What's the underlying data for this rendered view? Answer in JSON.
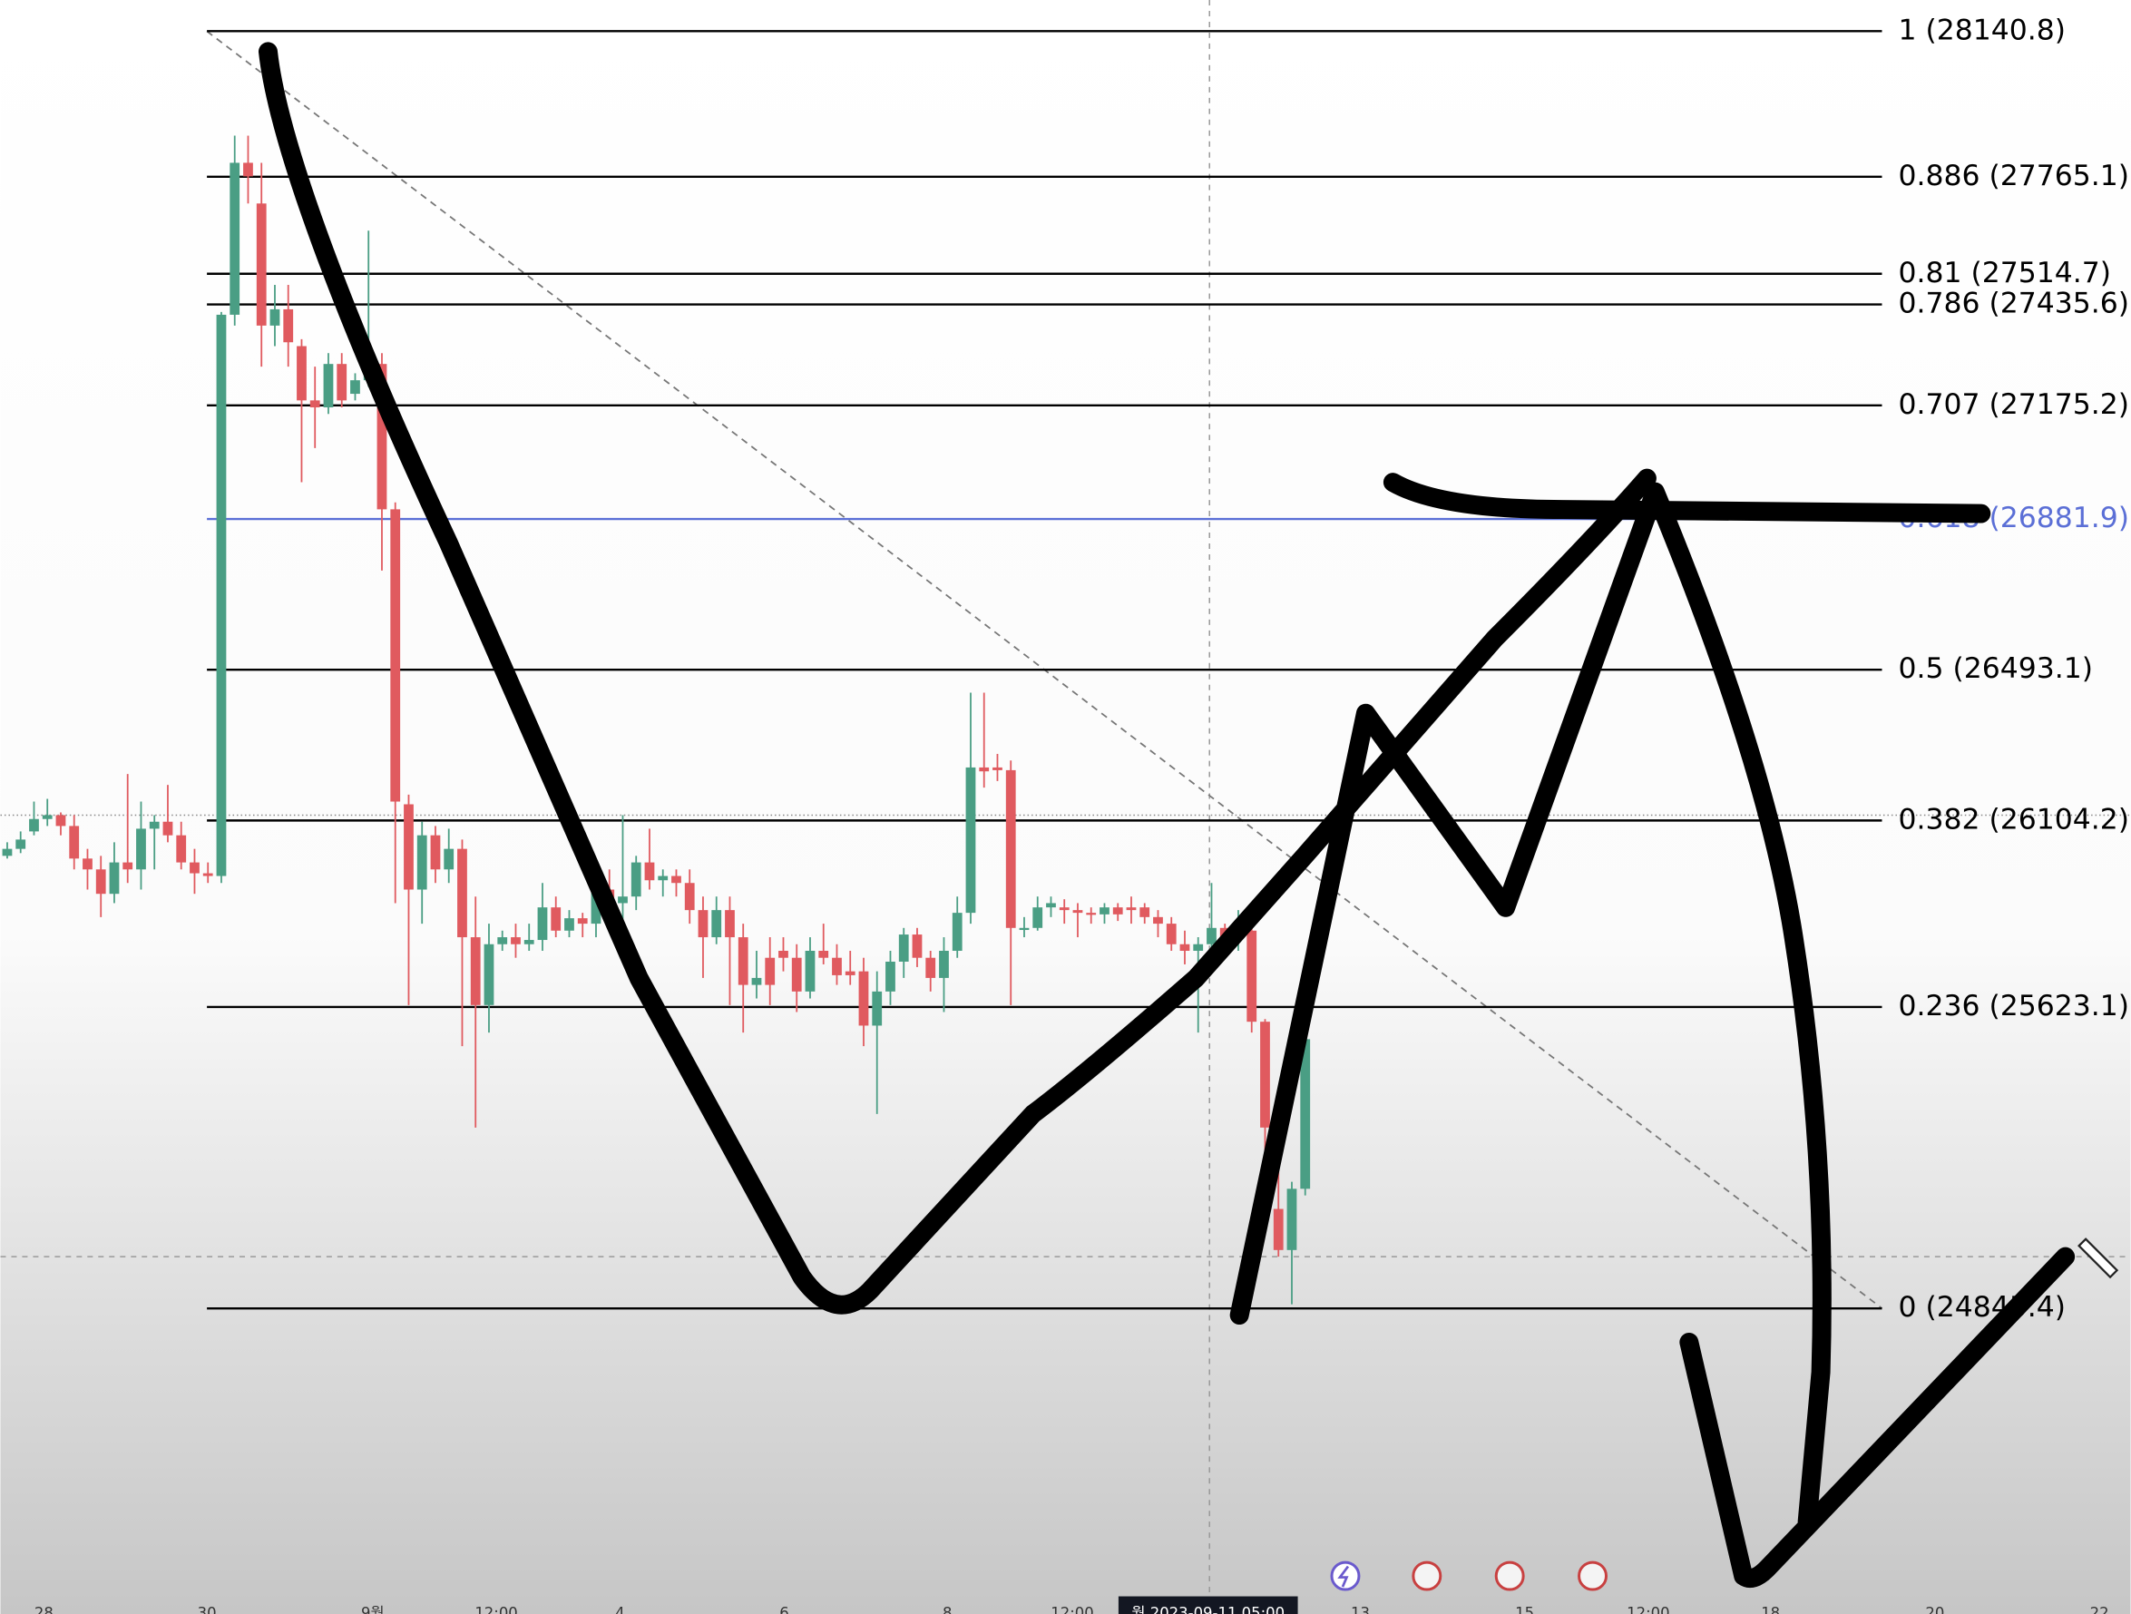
{
  "chart_data": {
    "type": "candlestick",
    "ylim": [
      24057,
      28221
    ],
    "up_color": "#4a9e84",
    "down_color": "#e05a5f",
    "levels": [
      {
        "label": "1 (28140.8)",
        "value": 28140.8,
        "color": "#000000"
      },
      {
        "label": "0.886 (27765.1)",
        "value": 27765.1,
        "color": "#000000"
      },
      {
        "label": "0.81 (27514.7)",
        "value": 27514.7,
        "color": "#000000"
      },
      {
        "label": "0.786 (27435.6)",
        "value": 27435.6,
        "color": "#000000"
      },
      {
        "label": "0.707 (27175.2)",
        "value": 27175.2,
        "color": "#000000"
      },
      {
        "label": "0.618 (26881.9)",
        "value": 26881.9,
        "color": "#5b6fd6"
      },
      {
        "label": "0.5 (26493.1)",
        "value": 26493.1,
        "color": "#000000"
      },
      {
        "label": "0.382 (26104.2)",
        "value": 26104.2,
        "color": "#000000"
      },
      {
        "label": "0.236 (25623.1)",
        "value": 25623.1,
        "color": "#000000"
      },
      {
        "label": "0 (24845.4)",
        "value": 24845.4,
        "color": "#000000"
      }
    ],
    "x_labels": [
      "28",
      "30",
      "9월",
      "12:00",
      "4",
      "6",
      "8",
      "12:00",
      "13",
      "15",
      "12:00",
      "18",
      "20",
      "22"
    ],
    "cursor_time": "월 2023-09-11 05:00",
    "candles": [
      [
        26013,
        26048,
        26006,
        26031
      ],
      [
        26031,
        26076,
        26020,
        26055
      ],
      [
        26076,
        26153,
        26066,
        26108
      ],
      [
        26108,
        26160,
        26090,
        26118
      ],
      [
        26118,
        26125,
        26066,
        26090
      ],
      [
        26090,
        26118,
        25978,
        26006
      ],
      [
        26006,
        26031,
        25926,
        25978
      ],
      [
        25978,
        26013,
        25855,
        25915
      ],
      [
        25915,
        26048,
        25891,
        25996
      ],
      [
        25996,
        26224,
        25943,
        25978
      ],
      [
        25978,
        26153,
        25926,
        26083
      ],
      [
        26083,
        26118,
        25978,
        26101
      ],
      [
        26101,
        26196,
        26048,
        26066
      ],
      [
        26066,
        26101,
        25978,
        25996
      ],
      [
        25996,
        26031,
        25915,
        25968
      ],
      [
        25968,
        25996,
        25943,
        25961
      ],
      [
        25961,
        27416,
        25943,
        27409
      ],
      [
        27409,
        27871,
        27381,
        27801
      ],
      [
        27801,
        27871,
        27696,
        27766
      ],
      [
        27696,
        27801,
        27275,
        27381
      ],
      [
        27381,
        27486,
        27328,
        27423
      ],
      [
        27423,
        27486,
        27275,
        27338
      ],
      [
        27328,
        27346,
        26977,
        27188
      ],
      [
        27188,
        27275,
        27065,
        27170
      ],
      [
        27170,
        27310,
        27153,
        27282
      ],
      [
        27282,
        27310,
        27170,
        27188
      ],
      [
        27205,
        27258,
        27188,
        27240
      ],
      [
        27240,
        27626,
        27223,
        27282
      ],
      [
        27282,
        27310,
        26749,
        26907
      ],
      [
        26907,
        26925,
        25891,
        26153
      ],
      [
        26146,
        26171,
        25628,
        25926
      ],
      [
        25926,
        26101,
        25838,
        26066
      ],
      [
        26066,
        26090,
        25943,
        25978
      ],
      [
        25978,
        26083,
        25943,
        26031
      ],
      [
        26031,
        26055,
        25522,
        25803
      ],
      [
        25803,
        25908,
        25312,
        25628
      ],
      [
        25628,
        25838,
        25557,
        25785
      ],
      [
        25785,
        25820,
        25768,
        25803
      ],
      [
        25803,
        25838,
        25750,
        25785
      ],
      [
        25785,
        25838,
        25768,
        25796
      ],
      [
        25796,
        25943,
        25768,
        25880
      ],
      [
        25880,
        25908,
        25803,
        25820
      ],
      [
        25820,
        25873,
        25803,
        25852
      ],
      [
        25852,
        25866,
        25803,
        25838
      ],
      [
        25838,
        25943,
        25803,
        25926
      ],
      [
        25926,
        25978,
        25838,
        25891
      ],
      [
        25891,
        26118,
        25803,
        25908
      ],
      [
        25908,
        26013,
        25873,
        25996
      ],
      [
        25996,
        26083,
        25926,
        25950
      ],
      [
        25950,
        25978,
        25908,
        25961
      ],
      [
        25961,
        25978,
        25908,
        25943
      ],
      [
        25943,
        25978,
        25838,
        25873
      ],
      [
        25873,
        25908,
        25698,
        25803
      ],
      [
        25803,
        25908,
        25785,
        25873
      ],
      [
        25873,
        25908,
        25628,
        25803
      ],
      [
        25803,
        25838,
        25557,
        25680
      ],
      [
        25680,
        25768,
        25645,
        25698
      ],
      [
        25750,
        25803,
        25628,
        25680
      ],
      [
        25768,
        25803,
        25715,
        25750
      ],
      [
        25750,
        25785,
        25610,
        25663
      ],
      [
        25663,
        25803,
        25645,
        25768
      ],
      [
        25768,
        25838,
        25733,
        25750
      ],
      [
        25750,
        25785,
        25680,
        25705
      ],
      [
        25715,
        25768,
        25680,
        25705
      ],
      [
        25715,
        25750,
        25522,
        25575
      ],
      [
        25575,
        25715,
        25347,
        25663
      ],
      [
        25663,
        25768,
        25628,
        25740
      ],
      [
        25740,
        25827,
        25698,
        25810
      ],
      [
        25810,
        25827,
        25726,
        25750
      ],
      [
        25750,
        25768,
        25663,
        25698
      ],
      [
        25698,
        25803,
        25610,
        25768
      ],
      [
        25768,
        25908,
        25750,
        25866
      ],
      [
        25866,
        26434,
        25838,
        26241
      ],
      [
        26241,
        26434,
        26189,
        26231
      ],
      [
        26241,
        26276,
        26206,
        26234
      ],
      [
        26234,
        26259,
        25628,
        25827
      ],
      [
        25827,
        25855,
        25803,
        25827
      ],
      [
        25827,
        25908,
        25820,
        25880
      ],
      [
        25880,
        25908,
        25855,
        25891
      ],
      [
        25880,
        25901,
        25838,
        25873
      ],
      [
        25873,
        25891,
        25803,
        25866
      ],
      [
        25866,
        25880,
        25838,
        25862
      ],
      [
        25862,
        25891,
        25838,
        25880
      ],
      [
        25880,
        25891,
        25845,
        25862
      ],
      [
        25880,
        25908,
        25838,
        25873
      ],
      [
        25880,
        25891,
        25838,
        25855
      ],
      [
        25855,
        25873,
        25803,
        25838
      ],
      [
        25838,
        25855,
        25768,
        25785
      ],
      [
        25785,
        25820,
        25733,
        25768
      ],
      [
        25768,
        25803,
        25557,
        25785
      ],
      [
        25785,
        25943,
        25768,
        25827
      ],
      [
        25827,
        25838,
        25768,
        25803
      ],
      [
        25803,
        25873,
        25768,
        25838
      ],
      [
        25820,
        25838,
        25557,
        25585
      ],
      [
        25585,
        25592,
        25067,
        25312
      ],
      [
        25102,
        25207,
        24979,
        24996
      ],
      [
        24996,
        25172,
        24856,
        25154
      ],
      [
        25154,
        25663,
        25137,
        25540
      ]
    ]
  }
}
